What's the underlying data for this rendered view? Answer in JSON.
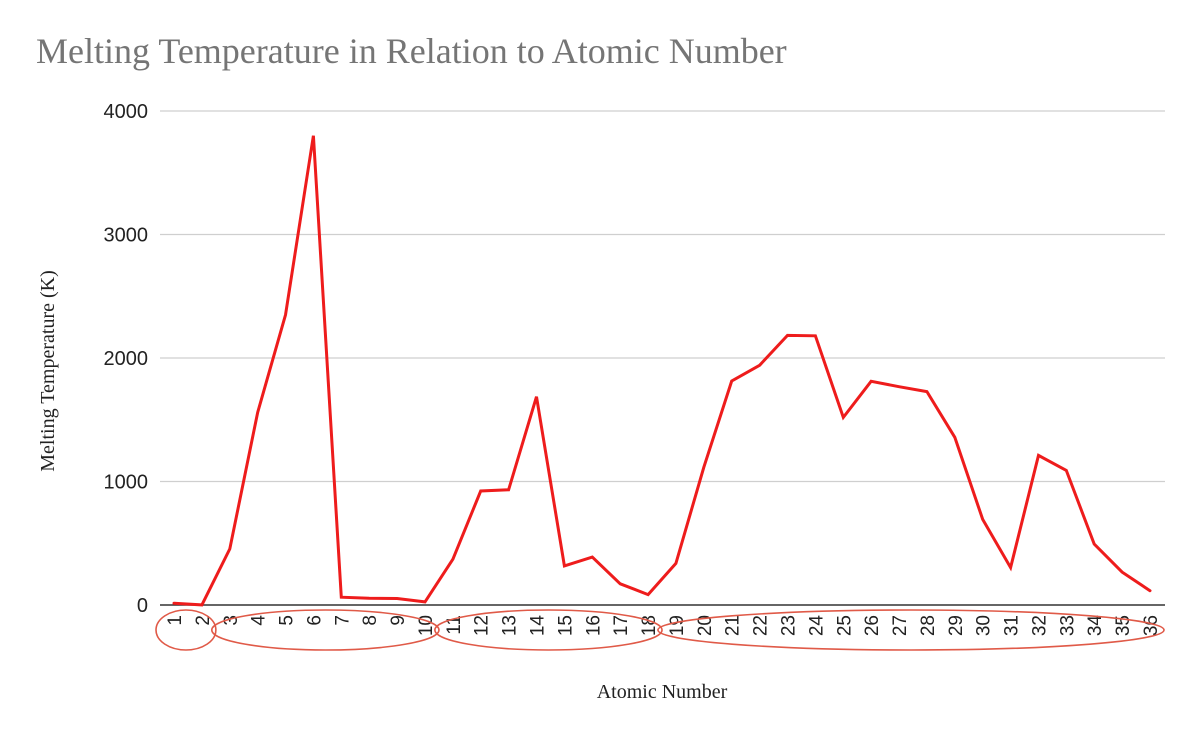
{
  "chart_data": {
    "type": "line",
    "title": "Melting Temperature in Relation to Atomic Number",
    "xlabel": "Atomic Number",
    "ylabel": "Melting Temperature (K)",
    "ylim": [
      0,
      4000
    ],
    "yticks": [
      "0",
      "1000",
      "2000",
      "3000",
      "4000"
    ],
    "grid": true,
    "categories": [
      "1",
      "2",
      "3",
      "4",
      "5",
      "6",
      "7",
      "8",
      "9",
      "10",
      "11",
      "12",
      "13",
      "14",
      "15",
      "16",
      "17",
      "18",
      "19",
      "20",
      "21",
      "22",
      "23",
      "24",
      "25",
      "26",
      "27",
      "28",
      "29",
      "30",
      "31",
      "32",
      "33",
      "34",
      "35",
      "36"
    ],
    "series": [
      {
        "color": "#ee1c1c",
        "values": [
          14,
          1,
          454,
          1560,
          2349,
          3800,
          63,
          55,
          53,
          25,
          371,
          923,
          933,
          1687,
          317,
          388,
          172,
          84,
          337,
          1115,
          1814,
          1941,
          2183,
          2180,
          1519,
          1811,
          1768,
          1728,
          1358,
          693,
          303,
          1211,
          1090,
          494,
          266,
          116
        ]
      }
    ],
    "annotations": [
      {
        "shape": "ellipse",
        "color": "#e05a48",
        "from": "1",
        "to": "2"
      },
      {
        "shape": "ellipse",
        "color": "#e05a48",
        "from": "3",
        "to": "10"
      },
      {
        "shape": "ellipse",
        "color": "#e05a48",
        "from": "11",
        "to": "18"
      },
      {
        "shape": "ellipse",
        "color": "#e05a48",
        "from": "19",
        "to": "36"
      }
    ]
  }
}
